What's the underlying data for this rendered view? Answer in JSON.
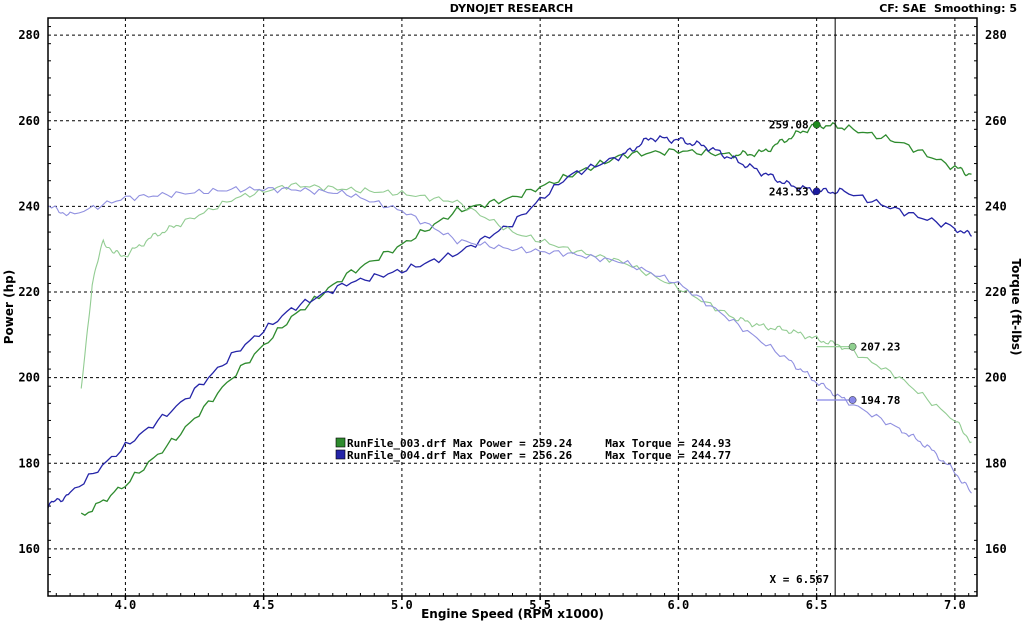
{
  "header": {
    "title": "DYNOJET RESEARCH",
    "info": "CF: SAE  Smoothing: 5"
  },
  "cursor": {
    "label": "X = 6.567",
    "rpm": 6.567
  },
  "legend": [
    {
      "text": "RunFile_003.drf Max Power = 259.24     Max Torque = 244.93",
      "color": "#2e8b2e"
    },
    {
      "text": "RunFile_004.drf Max Power = 256.26     Max Torque = 244.77",
      "color": "#2424a8"
    }
  ],
  "markers": [
    {
      "label": "259.08",
      "x": 6.5,
      "y": 259.08,
      "color": "#1f8a1f",
      "side": "left"
    },
    {
      "label": "243.53",
      "x": 6.5,
      "y": 243.53,
      "color": "#1a1aa0",
      "side": "left"
    },
    {
      "label": "207.23",
      "x": 6.63,
      "y": 207.23,
      "color": "#8fcf8f",
      "side": "right"
    },
    {
      "label": "194.78",
      "x": 6.63,
      "y": 194.78,
      "color": "#8888e8",
      "side": "right"
    }
  ],
  "chart_data": {
    "type": "line",
    "xlabel": "Engine Speed (RPM x1000)",
    "ylabel": "Power (hp)",
    "ylabel_right": "Torque (ft-lbs)",
    "xlim": [
      3.72,
      7.08
    ],
    "ylim": [
      149,
      284
    ],
    "x_ticks": [
      "4.0",
      "4.5",
      "5.0",
      "5.5",
      "6.0",
      "6.5",
      "7.0"
    ],
    "y_ticks": [
      "160",
      "180",
      "200",
      "220",
      "240",
      "260",
      "280"
    ],
    "grid": true,
    "series": [
      {
        "name": "RunFile_003.drf Power",
        "color": "#2e8b2e",
        "x": [
          3.84,
          4.0,
          4.2,
          4.4,
          4.6,
          4.8,
          5.0,
          5.2,
          5.4,
          5.6,
          5.8,
          6.0,
          6.2,
          6.3,
          6.4,
          6.5,
          6.6,
          6.8,
          7.0,
          7.06
        ],
        "y": [
          167.5,
          175,
          187,
          201,
          214,
          224,
          231,
          239,
          242,
          247,
          252,
          253,
          252,
          252.5,
          256,
          259.1,
          258.5,
          255,
          249,
          247.5
        ]
      },
      {
        "name": "RunFile_004.drf Power",
        "color": "#2424a8",
        "x": [
          3.72,
          3.8,
          4.0,
          4.2,
          4.4,
          4.6,
          4.8,
          5.0,
          5.2,
          5.4,
          5.6,
          5.8,
          5.9,
          6.0,
          6.1,
          6.2,
          6.3,
          6.4,
          6.5,
          6.6,
          6.8,
          7.0,
          7.06
        ],
        "y": [
          170,
          173,
          184,
          194,
          206,
          216,
          222,
          225,
          229,
          236,
          247,
          252,
          256,
          255.5,
          254,
          251,
          248,
          245,
          243.5,
          243.5,
          239,
          235,
          233
        ]
      },
      {
        "name": "RunFile_003.drf Torque",
        "color": "#92cc92",
        "x": [
          3.84,
          3.88,
          3.92,
          3.96,
          4.0,
          4.1,
          4.2,
          4.4,
          4.6,
          4.8,
          5.0,
          5.2,
          5.4,
          5.6,
          5.8,
          6.0,
          6.2,
          6.3,
          6.4,
          6.5,
          6.6,
          6.8,
          7.0,
          7.06
        ],
        "y": [
          197,
          222,
          232,
          229,
          228.5,
          233,
          236,
          242,
          245,
          244,
          243,
          241,
          234,
          230,
          227,
          221,
          214,
          212,
          211,
          209,
          207.2,
          200,
          190,
          185
        ]
      },
      {
        "name": "RunFile_004.drf Torque",
        "color": "#9090e0",
        "x": [
          3.72,
          3.8,
          4.0,
          4.2,
          4.4,
          4.6,
          4.8,
          5.0,
          5.2,
          5.4,
          5.6,
          5.8,
          6.0,
          6.2,
          6.4,
          6.5,
          6.6,
          6.8,
          6.9,
          7.0,
          7.06
        ],
        "y": [
          240,
          238,
          242,
          243,
          244,
          244,
          243,
          239,
          232,
          230,
          229,
          227,
          222,
          213,
          204,
          199,
          194.8,
          188,
          184,
          178,
          173
        ]
      }
    ]
  }
}
